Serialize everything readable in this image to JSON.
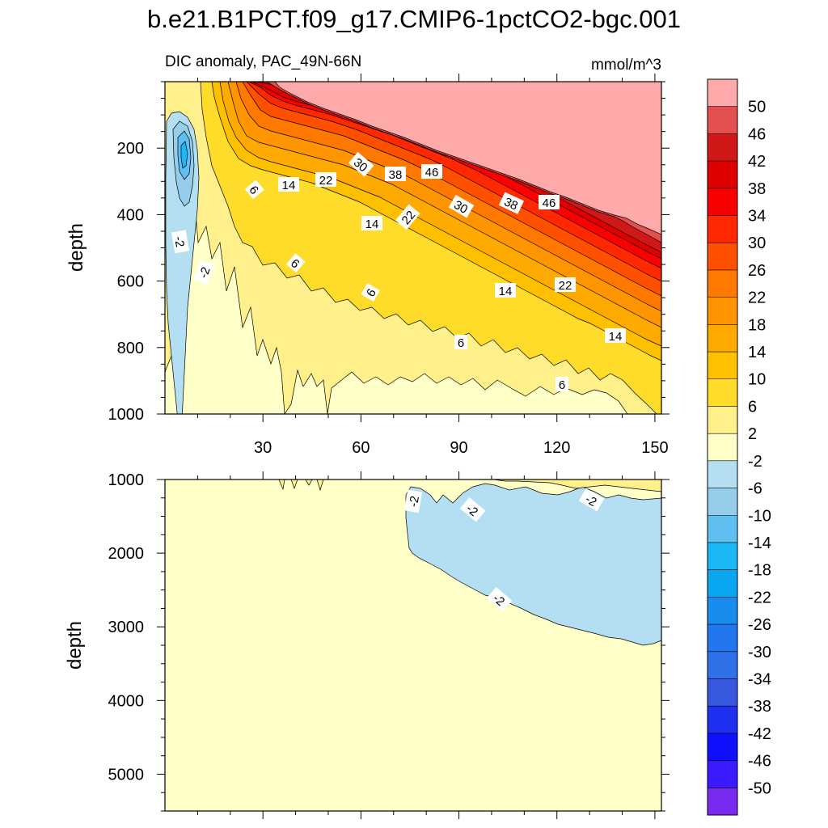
{
  "chart_data": {
    "type": "heatmap",
    "title": "b.e21.B1PCT.f09_g17.CMIP6-1pctCO2-bgc.001",
    "subtitle": "DIC anomaly, PAC_49N-66N",
    "units": "mmol/m^3",
    "ylabel": "depth",
    "xlim": [
      0,
      152
    ],
    "x_ticks": [
      "30",
      "60",
      "90",
      "120",
      "150"
    ],
    "colorbar": {
      "labels": [
        "50",
        "46",
        "42",
        "38",
        "34",
        "30",
        "26",
        "22",
        "18",
        "14",
        "10",
        "6",
        "2",
        "-2",
        "-6",
        "-10",
        "-14",
        "-18",
        "-22",
        "-26",
        "-30",
        "-34",
        "-38",
        "-42",
        "-46",
        "-50"
      ],
      "colors": [
        "#ffaaaa",
        "#e45050",
        "#d01818",
        "#df0000",
        "#fa0000",
        "#ff2800",
        "#ff5000",
        "#ff7800",
        "#ff9500",
        "#ffaa00",
        "#ffc000",
        "#ffdb2a",
        "#fff08c",
        "#ffffc8",
        "#b4dff2",
        "#96cdeb",
        "#5fbff0",
        "#1cb8f5",
        "#0aa6f0",
        "#1a8cf0",
        "#2277ee",
        "#3070e8",
        "#3858e0",
        "#1e30f0",
        "#1010ff",
        "#3a1aff",
        "#7a2af0"
      ]
    },
    "panels": [
      {
        "name": "upper",
        "ylim": [
          0,
          1000
        ],
        "y_ticks": [
          "200",
          "400",
          "600",
          "800",
          "1000"
        ],
        "contour_labels": [
          "30",
          "38",
          "46",
          "14",
          "22",
          "6",
          "38",
          "46",
          "30",
          "22",
          "14",
          "-2",
          "-2",
          "6",
          "6",
          "14",
          "22",
          "6",
          "14",
          "6"
        ]
      },
      {
        "name": "lower",
        "ylim": [
          1000,
          5500
        ],
        "y_ticks": [
          "1000",
          "2000",
          "3000",
          "4000",
          "5000"
        ],
        "contour_labels": [
          "-2",
          "-2",
          "-2",
          "-2"
        ]
      }
    ]
  }
}
